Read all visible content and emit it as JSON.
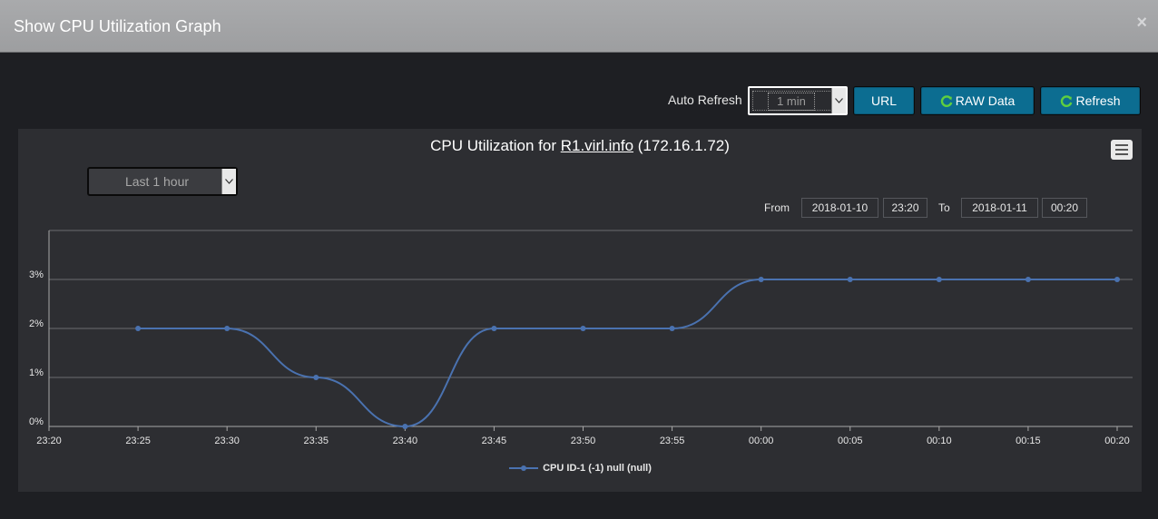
{
  "modal": {
    "title": "Show CPU Utilization Graph",
    "close_label": "×"
  },
  "toolbar": {
    "auto_refresh_label": "Auto Refresh",
    "auto_refresh_value": "1 min",
    "url_label": "URL",
    "raw_data_label": "RAW Data",
    "refresh_label": "Refresh"
  },
  "chart_header": {
    "title_prefix": "CPU Utilization for ",
    "host_link": "R1.virl.info",
    "title_suffix": " (172.16.1.72)"
  },
  "range": {
    "preset": "Last 1 hour",
    "from_label": "From",
    "from_date": "2018-01-10",
    "from_time": "23:20",
    "to_label": "To",
    "to_date": "2018-01-11",
    "to_time": "00:20"
  },
  "colors": {
    "series": "#4a72b0",
    "accent_button": "#0c6d91",
    "refresh_icon": "#5fd03f"
  },
  "chart_data": {
    "type": "line",
    "x": [
      "23:25",
      "23:30",
      "23:35",
      "23:40",
      "23:45",
      "23:50",
      "23:55",
      "00:00",
      "00:05",
      "00:10",
      "00:15",
      "00:20"
    ],
    "x_ticks": [
      "23:20",
      "23:25",
      "23:30",
      "23:35",
      "23:40",
      "23:45",
      "23:50",
      "23:55",
      "00:00",
      "00:05",
      "00:10",
      "00:15",
      "00:20"
    ],
    "y_ticks": [
      "0%",
      "1%",
      "2%",
      "3%"
    ],
    "ylim": [
      0,
      4
    ],
    "series": [
      {
        "name": "CPU ID-1 (-1) null (null)",
        "values": [
          2,
          2,
          1,
          0,
          2,
          2,
          2,
          3,
          3,
          3,
          3,
          3
        ]
      }
    ],
    "grid": true,
    "legend_position": "bottom-center",
    "smooth": true
  }
}
